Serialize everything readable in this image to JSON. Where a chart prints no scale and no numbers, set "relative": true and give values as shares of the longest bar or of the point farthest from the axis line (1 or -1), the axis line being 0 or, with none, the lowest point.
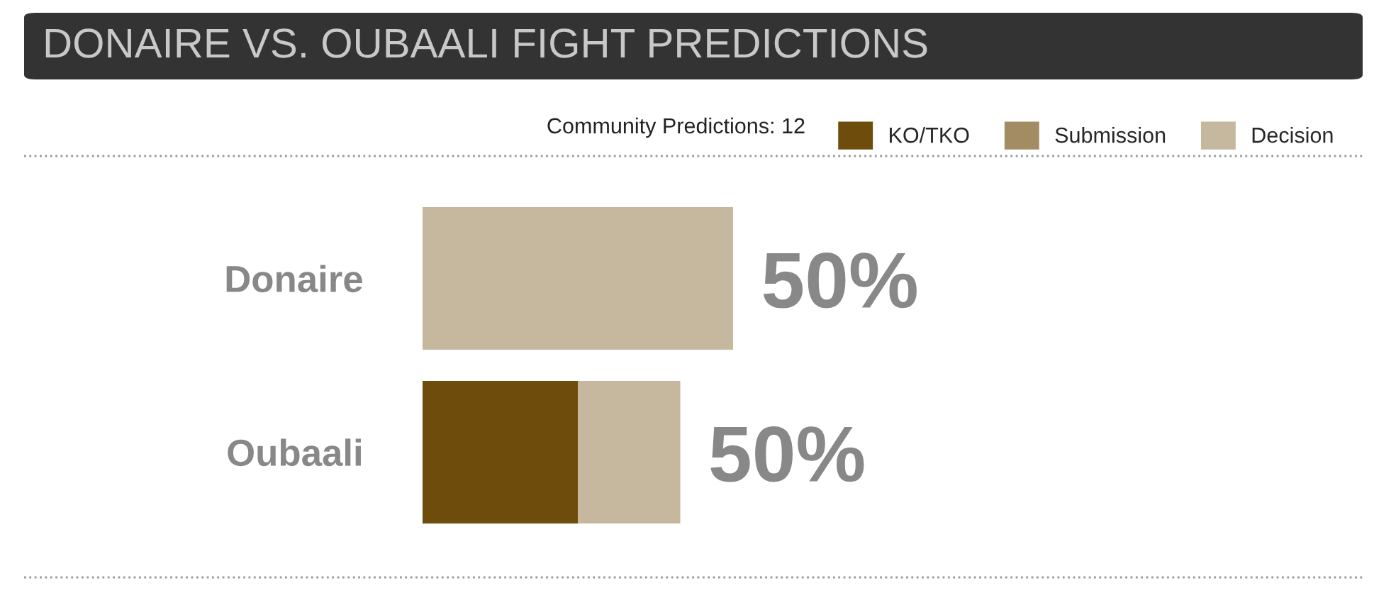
{
  "chart_data": {
    "type": "bar",
    "orientation": "horizontal",
    "stacked": true,
    "relative": true,
    "title": "DONAIRE VS. OUBAALI FIGHT PREDICTIONS",
    "annotations": [
      "Community Predictions: 12",
      {
        "text": "50%",
        "x": 1,
        "y": "Donaire"
      },
      {
        "text": "50%",
        "x": 0.83,
        "y": "Oubaali"
      }
    ],
    "categories": [
      "Donaire",
      "Oubaali"
    ],
    "series": [
      {
        "name": "KO/TKO",
        "color": "#6e4c0b",
        "values": [
          null,
          0.5
        ]
      },
      {
        "name": "Submission",
        "color": "#a38c63",
        "values": [
          null,
          null
        ]
      },
      {
        "name": "Decision",
        "color": "#c6b89e",
        "values": [
          1,
          0.33
        ]
      }
    ],
    "legend": "top right",
    "grid": false,
    "tick_labels": "y"
  }
}
